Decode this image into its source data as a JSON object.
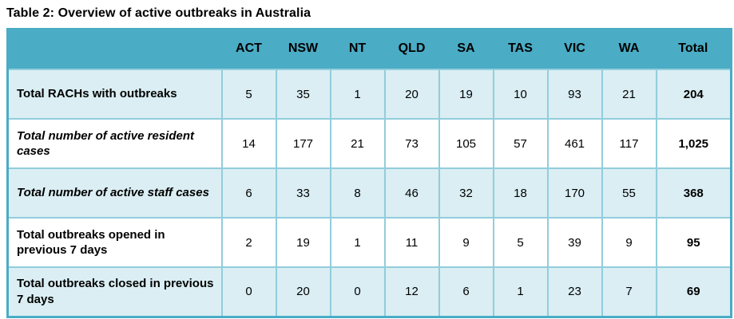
{
  "title": "Table 2: Overview of active outbreaks in Australia",
  "colors": {
    "header_bg": "#4AACC5",
    "shaded_row_bg": "#DAEEF3",
    "inner_border": "#92CDDC",
    "outer_border": "#4AACC5",
    "text": "#000000"
  },
  "table": {
    "columns": [
      "ACT",
      "NSW",
      "NT",
      "QLD",
      "SA",
      "TAS",
      "VIC",
      "WA",
      "Total"
    ],
    "rows": [
      {
        "label": "Total RACHs with outbreaks",
        "values": [
          "5",
          "35",
          "1",
          "20",
          "19",
          "10",
          "93",
          "21",
          "204"
        ]
      },
      {
        "label": "Total number of active resident cases",
        "values": [
          "14",
          "177",
          "21",
          "73",
          "105",
          "57",
          "461",
          "117",
          "1,025"
        ]
      },
      {
        "label": "Total number of active staff cases",
        "values": [
          "6",
          "33",
          "8",
          "46",
          "32",
          "18",
          "170",
          "55",
          "368"
        ]
      },
      {
        "label": "Total outbreaks opened in previous 7 days",
        "values": [
          "2",
          "19",
          "1",
          "11",
          "9",
          "5",
          "39",
          "9",
          "95"
        ]
      },
      {
        "label": "Total outbreaks closed in previous 7 days",
        "values": [
          "0",
          "20",
          "0",
          "12",
          "6",
          "1",
          "23",
          "7",
          "69"
        ]
      }
    ]
  }
}
